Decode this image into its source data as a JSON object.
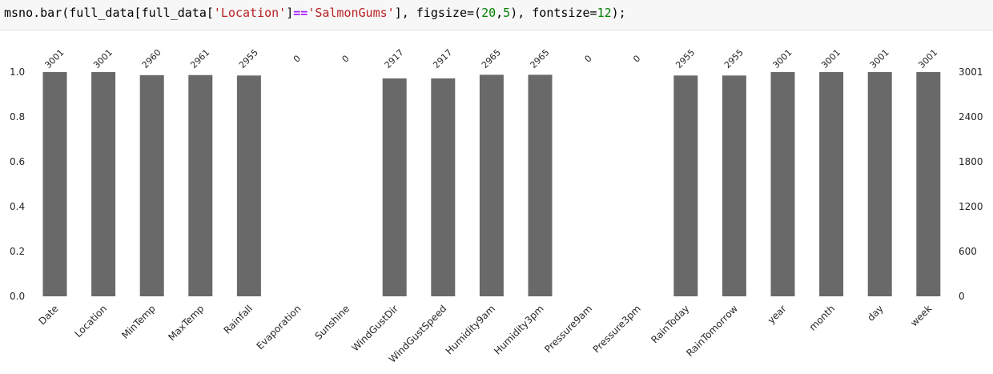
{
  "code": {
    "fn": "msno.bar(",
    "df1": "full_data[full_data[",
    "str1": "'Location'",
    "close1": "]",
    "op": "==",
    "str2": "'SalmonGums'",
    "mid": "], figsize=(",
    "n1": "20",
    "comma": ",",
    "n2": "5",
    "mid2": "), fontsize=",
    "n3": "12",
    "end": ");"
  },
  "chart_data": {
    "type": "bar",
    "categories": [
      "Date",
      "Location",
      "MinTemp",
      "MaxTemp",
      "Rainfall",
      "Evaporation",
      "Sunshine",
      "WindGustDir",
      "WindGustSpeed",
      "Humidity9am",
      "Humidity3pm",
      "Pressure9am",
      "Pressure3pm",
      "RainToday",
      "RainTomorrow",
      "year",
      "month",
      "day",
      "week"
    ],
    "values": [
      3001,
      3001,
      2960,
      2961,
      2955,
      0,
      0,
      2917,
      2917,
      2965,
      2965,
      0,
      0,
      2955,
      2955,
      3001,
      3001,
      3001,
      3001
    ],
    "total": 3001,
    "left_ticks": [
      "0.0",
      "0.2",
      "0.4",
      "0.6",
      "0.8",
      "1.0"
    ],
    "right_ticks": [
      "0",
      "600",
      "1200",
      "1800",
      "2400",
      "3001"
    ],
    "ylim": [
      0,
      1
    ],
    "grid": false,
    "bar_color": "#696969"
  }
}
